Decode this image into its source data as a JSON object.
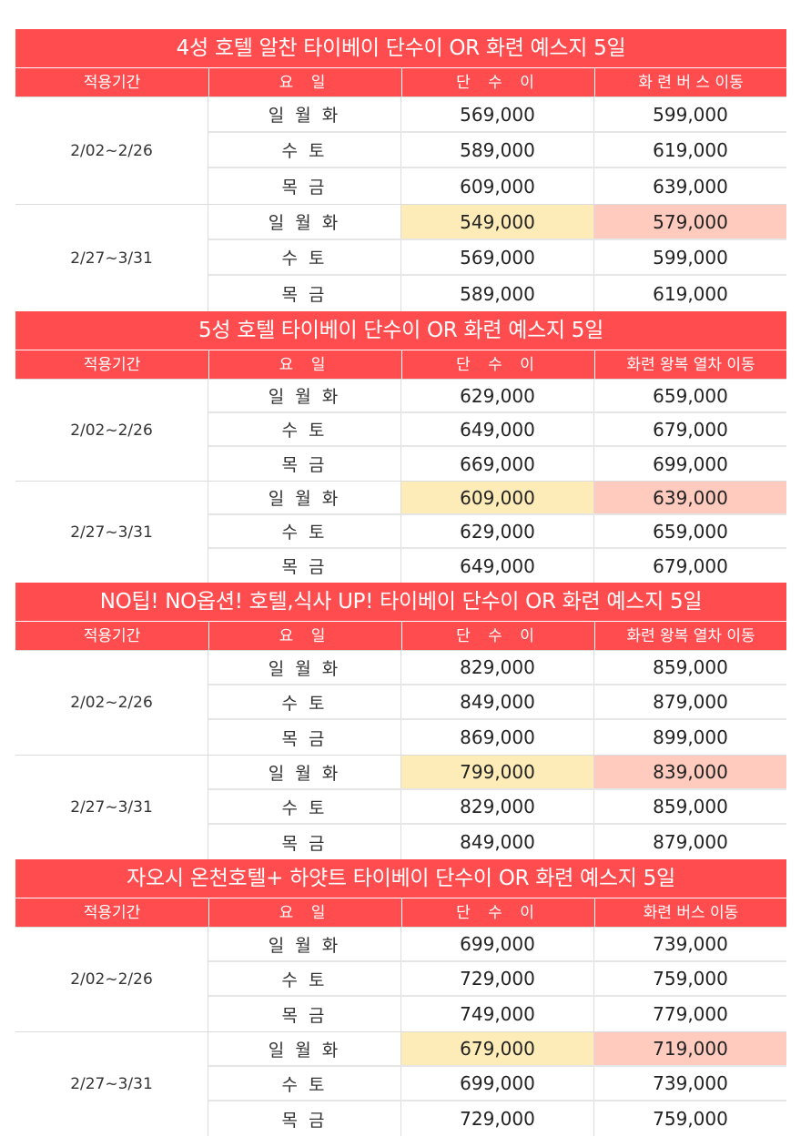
{
  "headers": {
    "period": "적용기간",
    "day": "요 일",
    "single": "단 수 이"
  },
  "highlight_colors": {
    "header_bg": "#ff4d4f",
    "promo_single": "#fdecb8",
    "promo_transport": "#ffcbbf"
  },
  "sections": [
    {
      "title": "4성 호텔 알찬 타이베이 단수이 OR 화련 예스지 5일",
      "transport_header": "화 련 버 스 이동",
      "groups": [
        {
          "period": "2/02~2/26",
          "rows": [
            {
              "day": "일 월 화",
              "single": "569,000",
              "transport": "599,000"
            },
            {
              "day": "수 토",
              "single": "589,000",
              "transport": "619,000"
            },
            {
              "day": "목 금",
              "single": "609,000",
              "transport": "639,000"
            }
          ]
        },
        {
          "period": "2/27~3/31",
          "rows": [
            {
              "day": "일 월 화",
              "single": "549,000",
              "transport": "579,000",
              "highlight": true
            },
            {
              "day": "수 토",
              "single": "569,000",
              "transport": "599,000"
            },
            {
              "day": "목 금",
              "single": "589,000",
              "transport": "619,000"
            }
          ]
        }
      ]
    },
    {
      "title": "5성 호텔 타이베이 단수이 OR 화련 예스지 5일",
      "transport_header": "화련 왕복 열차 이동",
      "groups": [
        {
          "period": "2/02~2/26",
          "rows": [
            {
              "day": "일 월 화",
              "single": "629,000",
              "transport": "659,000"
            },
            {
              "day": "수 토",
              "single": "649,000",
              "transport": "679,000"
            },
            {
              "day": "목 금",
              "single": "669,000",
              "transport": "699,000"
            }
          ]
        },
        {
          "period": "2/27~3/31",
          "rows": [
            {
              "day": "일 월 화",
              "single": "609,000",
              "transport": "639,000",
              "highlight": true
            },
            {
              "day": "수 토",
              "single": "629,000",
              "transport": "659,000"
            },
            {
              "day": "목 금",
              "single": "649,000",
              "transport": "679,000"
            }
          ]
        }
      ]
    },
    {
      "title": "NO팁! NO옵션! 호텔,식사 UP!  타이베이 단수이 OR 화련  예스지 5일",
      "transport_header": "화련 왕복 열차  이동",
      "groups": [
        {
          "period": "2/02~2/26",
          "rows": [
            {
              "day": "일 월 화",
              "single": "829,000",
              "transport": "859,000"
            },
            {
              "day": "수 토",
              "single": "849,000",
              "transport": "879,000"
            },
            {
              "day": "목 금",
              "single": "869,000",
              "transport": "899,000"
            }
          ]
        },
        {
          "period": "2/27~3/31",
          "rows": [
            {
              "day": "일 월 화",
              "single": "799,000",
              "transport": "839,000",
              "highlight": true
            },
            {
              "day": "수 토",
              "single": "829,000",
              "transport": "859,000"
            },
            {
              "day": "목 금",
              "single": "849,000",
              "transport": "879,000"
            }
          ]
        }
      ]
    },
    {
      "title": "자오시 온천호텔+ 하얏트 타이베이 단수이 OR 화련 예스지 5일",
      "transport_header": "화련 버스 이동",
      "groups": [
        {
          "period": "2/02~2/26",
          "rows": [
            {
              "day": "일 월 화",
              "single": "699,000",
              "transport": "739,000"
            },
            {
              "day": "수 토",
              "single": "729,000",
              "transport": "759,000"
            },
            {
              "day": "목 금",
              "single": "749,000",
              "transport": "779,000"
            }
          ]
        },
        {
          "period": "2/27~3/31",
          "rows": [
            {
              "day": "일 월 화",
              "single": "679,000",
              "transport": "719,000",
              "highlight": true
            },
            {
              "day": "수 토",
              "single": "699,000",
              "transport": "739,000"
            },
            {
              "day": "목 금",
              "single": "729,000",
              "transport": "759,000"
            }
          ]
        }
      ]
    }
  ]
}
